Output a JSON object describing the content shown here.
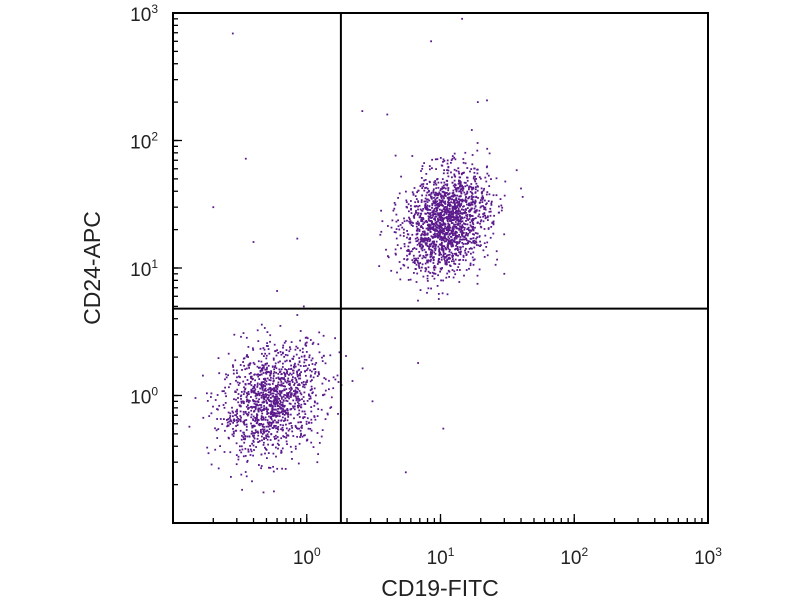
{
  "chart_data": {
    "type": "scatter",
    "title": "",
    "xlabel": "CD19-FITC",
    "ylabel": "CD24-APC",
    "xscale": "log",
    "yscale": "log",
    "xlim": [
      0.1,
      1000
    ],
    "ylim": [
      0.1,
      1000
    ],
    "x_ticks": [
      {
        "base": "10",
        "exp": "0",
        "value": 1
      },
      {
        "base": "10",
        "exp": "1",
        "value": 10
      },
      {
        "base": "10",
        "exp": "2",
        "value": 100
      },
      {
        "base": "10",
        "exp": "3",
        "value": 1000
      }
    ],
    "y_ticks": [
      {
        "base": "10",
        "exp": "0",
        "value": 1
      },
      {
        "base": "10",
        "exp": "1",
        "value": 10
      },
      {
        "base": "10",
        "exp": "2",
        "value": 100
      },
      {
        "base": "10",
        "exp": "3",
        "value": 1000
      }
    ],
    "quadrant_gates": {
      "x": 1.8,
      "y": 4.8
    },
    "point_color": "#5b1a8c",
    "grid": false,
    "legend": "none",
    "populations": [
      {
        "center": [
          0.55,
          0.9
        ],
        "spread_decades": [
          0.19,
          0.21
        ],
        "count": 1300
      },
      {
        "center": [
          11,
          23
        ],
        "spread_decades": [
          0.16,
          0.2
        ],
        "count": 1700
      }
    ],
    "outliers": [
      [
        0.28,
        690
      ],
      [
        14.5,
        900
      ],
      [
        8.5,
        600
      ],
      [
        0.35,
        72
      ],
      [
        0.2,
        30
      ],
      [
        0.95,
        5.0
      ],
      [
        0.6,
        6.6
      ],
      [
        5.5,
        0.25
      ],
      [
        10.5,
        0.55
      ],
      [
        1.2,
        0.3
      ],
      [
        3.1,
        0.9
      ],
      [
        6.8,
        1.8
      ],
      [
        2.2,
        1.3
      ],
      [
        0.4,
        16
      ],
      [
        0.85,
        17
      ],
      [
        40,
        42
      ],
      [
        30,
        9
      ],
      [
        4.0,
        160
      ],
      [
        19,
        200
      ],
      [
        2.6,
        170
      ]
    ]
  }
}
